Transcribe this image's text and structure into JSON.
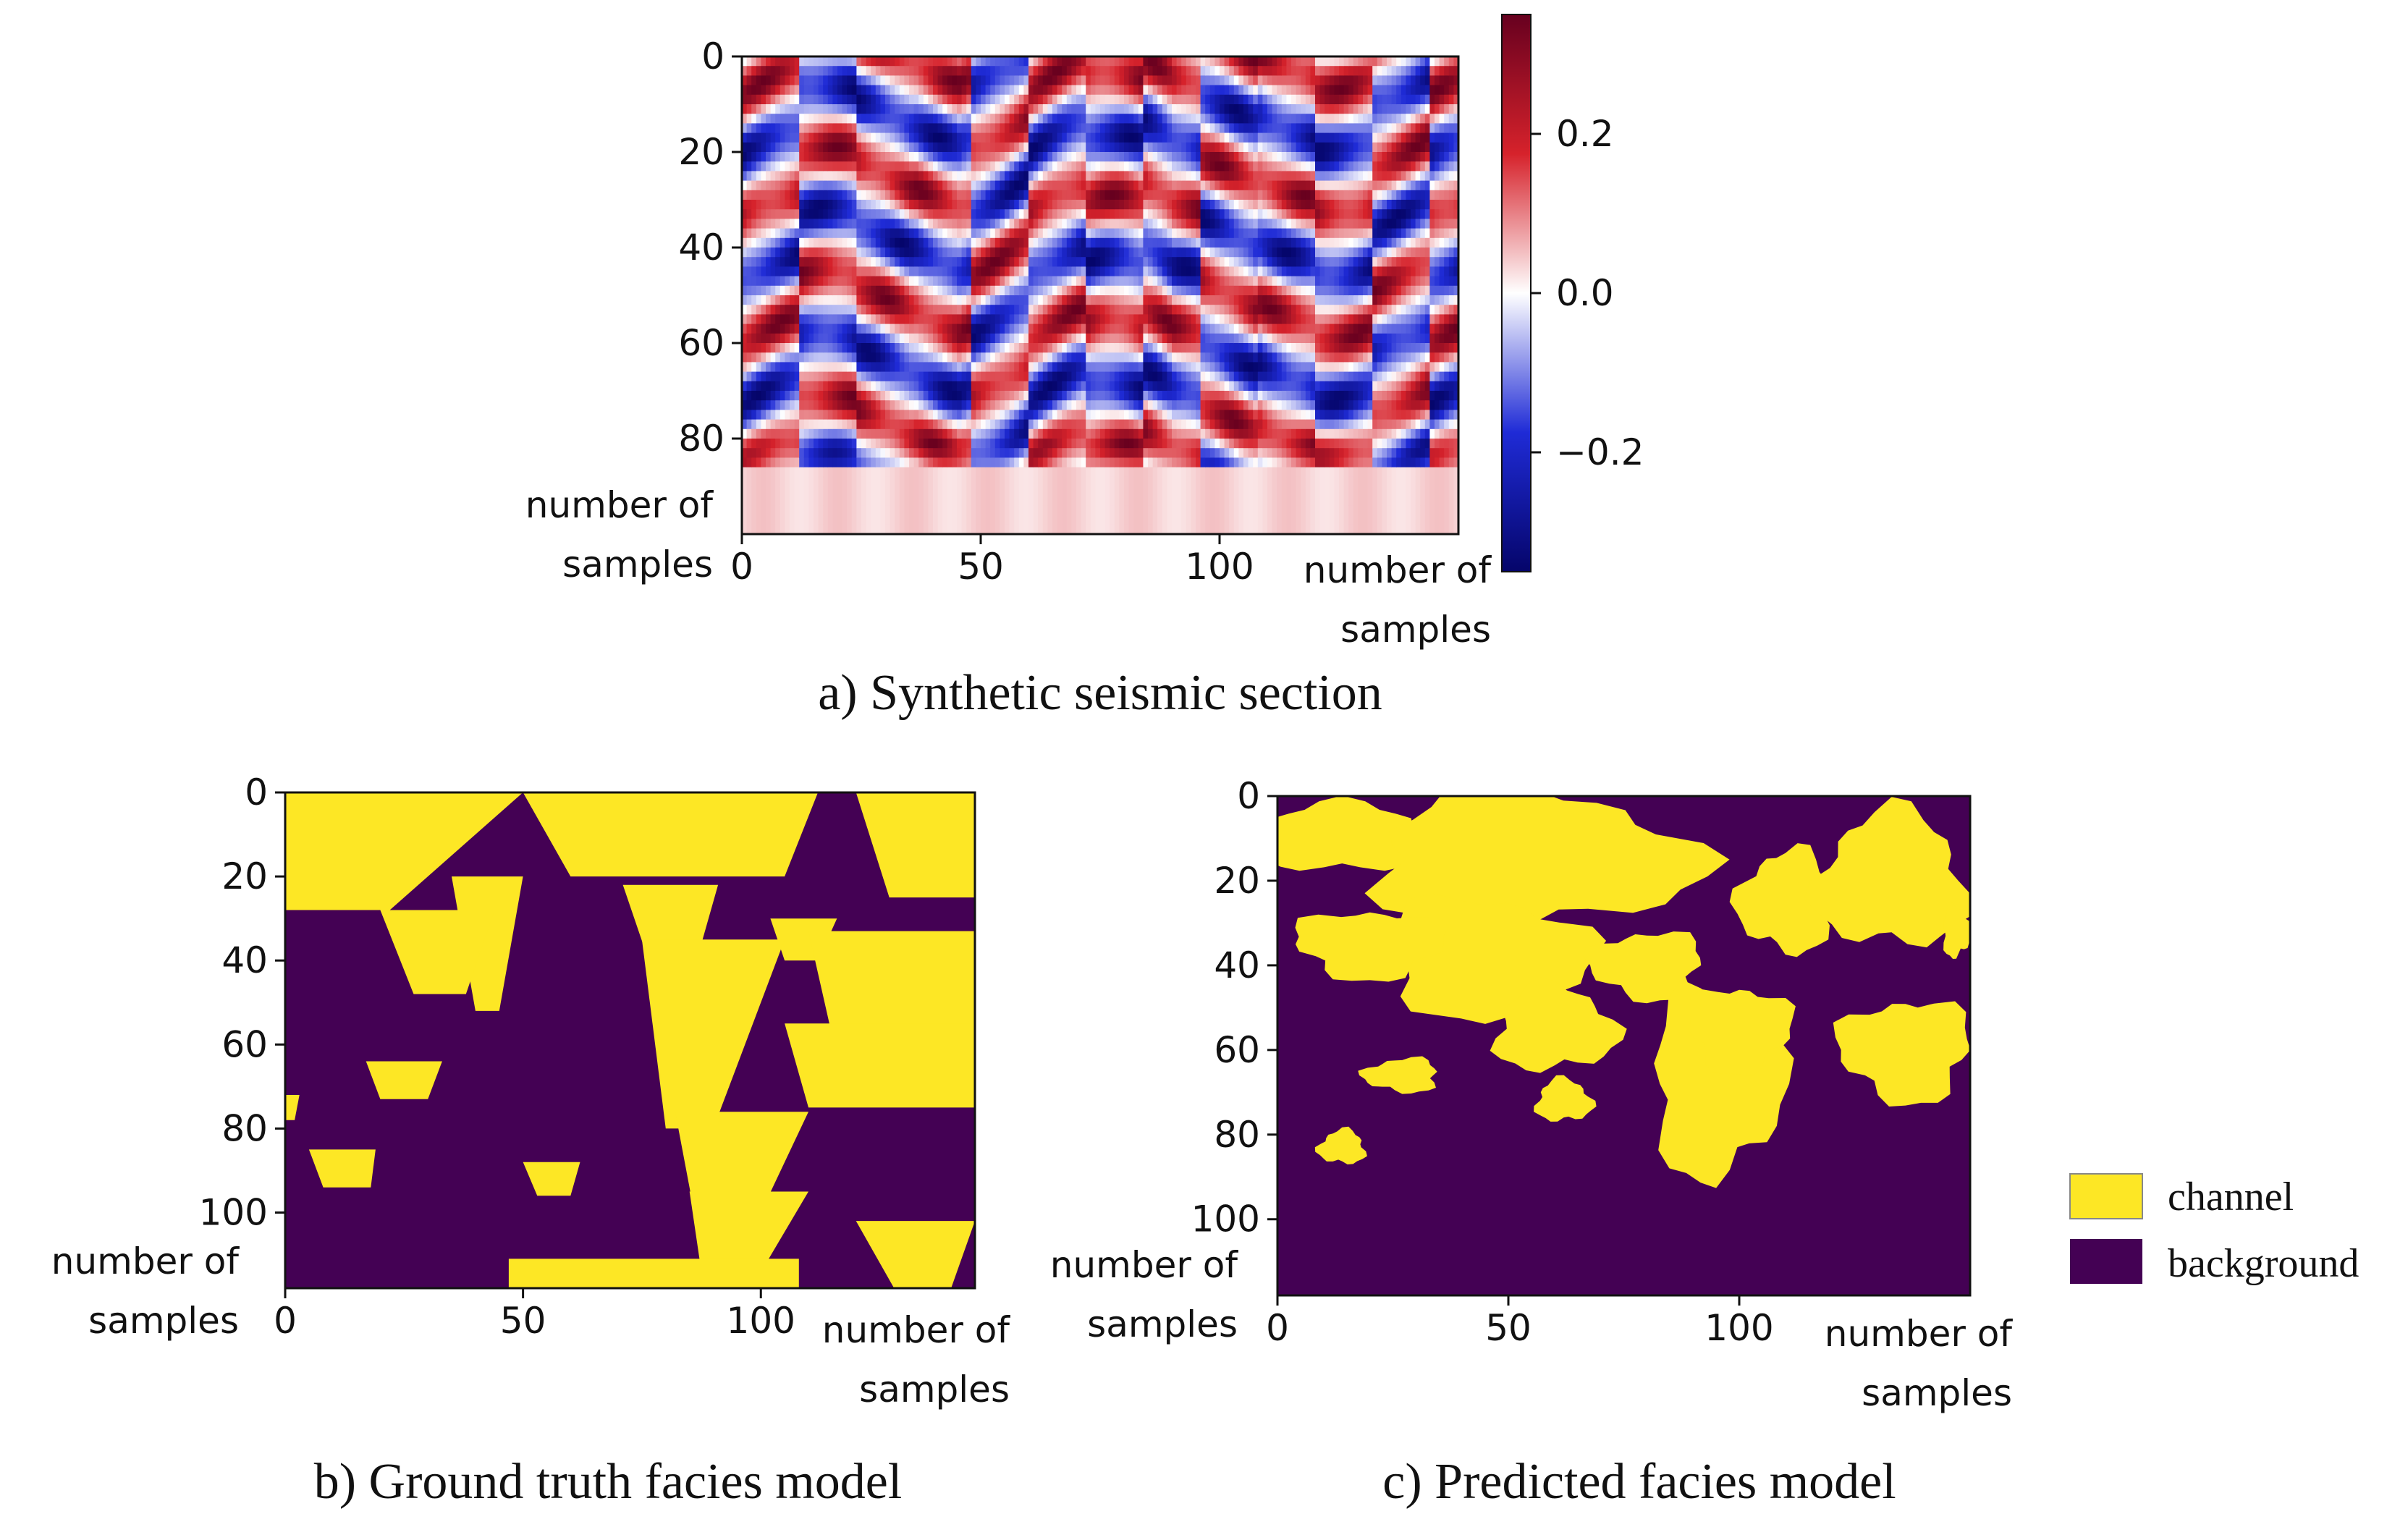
{
  "colors": {
    "channel": "#fde725",
    "background": "#440154",
    "seismic_high": "#67001f",
    "seismic_red": "#d6222b",
    "seismic_white": "#ffffff",
    "seismic_blue": "#1f2bd6",
    "seismic_low": "#05056a"
  },
  "chart_data": [
    {
      "id": "a",
      "type": "heatmap",
      "caption": "a) Synthetic seismic section",
      "xlabel": "number of samples",
      "ylabel": "number of samples",
      "xlim": [
        0,
        150
      ],
      "ylim": [
        0,
        100
      ],
      "xticks": [
        0,
        50,
        100
      ],
      "yticks": [
        0,
        20,
        40,
        60,
        80
      ],
      "colorbar": {
        "range": [
          -0.35,
          0.35
        ],
        "ticks": [
          0.2,
          0.0,
          -0.2
        ],
        "ticklabels": [
          "0.2",
          "0.0",
          "−0.2"
        ],
        "cmap": "seismic"
      },
      "note_values": "continuous amplitude field; dipping red/blue reflectors, weaker below ~80 samples"
    },
    {
      "id": "b",
      "type": "heatmap",
      "caption": "b) Ground truth facies model",
      "xlabel": "number of samples",
      "ylabel": "number of samples",
      "xlim": [
        0,
        145
      ],
      "ylim": [
        0,
        118
      ],
      "xticks": [
        0,
        50,
        100
      ],
      "yticks": [
        0,
        20,
        40,
        60,
        80,
        100
      ],
      "classes": [
        "channel",
        "background"
      ],
      "channel_bodies": [
        {
          "top": 0,
          "bottom": 28,
          "left_top": 0,
          "right_top": 50,
          "left_bottom": 0,
          "right_bottom": 22
        },
        {
          "top": 0,
          "bottom": 20,
          "left_top": 50,
          "right_top": 112,
          "left_bottom": 60,
          "right_bottom": 105
        },
        {
          "top": 0,
          "bottom": 25,
          "left_top": 120,
          "right_top": 145,
          "left_bottom": 127,
          "right_bottom": 145
        },
        {
          "top": 20,
          "bottom": 52,
          "left_top": 35,
          "right_top": 50,
          "left_bottom": 40,
          "right_bottom": 45
        },
        {
          "top": 28,
          "bottom": 48,
          "left_top": 20,
          "right_top": 44,
          "left_bottom": 27,
          "right_bottom": 38
        },
        {
          "top": 22,
          "bottom": 42,
          "left_top": 71,
          "right_top": 91,
          "left_bottom": 77,
          "right_bottom": 86
        },
        {
          "top": 30,
          "bottom": 40,
          "left_top": 102,
          "right_top": 116,
          "left_bottom": 105,
          "right_bottom": 112
        },
        {
          "top": 35,
          "bottom": 80,
          "left_top": 75,
          "right_top": 105,
          "left_bottom": 80,
          "right_bottom": 90
        },
        {
          "top": 33,
          "bottom": 58,
          "left_top": 110,
          "right_top": 145,
          "left_bottom": 115,
          "right_bottom": 145
        },
        {
          "top": 55,
          "bottom": 75,
          "left_top": 105,
          "right_top": 145,
          "left_bottom": 110,
          "right_bottom": 145
        },
        {
          "top": 64,
          "bottom": 73,
          "left_top": 17,
          "right_top": 33,
          "left_bottom": 20,
          "right_bottom": 30
        },
        {
          "top": 85,
          "bottom": 94,
          "left_top": 5,
          "right_top": 19,
          "left_bottom": 8,
          "right_bottom": 18
        },
        {
          "top": 88,
          "bottom": 96,
          "left_top": 50,
          "right_top": 62,
          "left_bottom": 53,
          "right_bottom": 60
        },
        {
          "top": 76,
          "bottom": 100,
          "left_top": 82,
          "right_top": 110,
          "left_bottom": 86,
          "right_bottom": 100
        },
        {
          "top": 95,
          "bottom": 118,
          "left_top": 85,
          "right_top": 110,
          "left_bottom": 88,
          "right_bottom": 98
        },
        {
          "top": 111,
          "bottom": 118,
          "left_top": 47,
          "right_top": 108,
          "left_bottom": 47,
          "right_bottom": 108
        },
        {
          "top": 102,
          "bottom": 118,
          "left_top": 120,
          "right_top": 145,
          "left_bottom": 128,
          "right_bottom": 140
        },
        {
          "top": 72,
          "bottom": 78,
          "left_top": 0,
          "right_top": 3,
          "left_bottom": 0,
          "right_bottom": 2
        }
      ]
    },
    {
      "id": "c",
      "type": "heatmap",
      "caption": "c) Predicted facies model",
      "xlabel": "number of samples",
      "ylabel": "number of samples",
      "xlim": [
        0,
        150
      ],
      "ylim": [
        0,
        118
      ],
      "xticks": [
        0,
        50,
        100
      ],
      "yticks": [
        0,
        20,
        40,
        60,
        80,
        100
      ],
      "classes": [
        "channel",
        "background"
      ],
      "channel_bodies": [
        {
          "cx": 14,
          "cy": 10,
          "rx": 20,
          "ry": 8
        },
        {
          "cx": 55,
          "cy": 15,
          "rx": 35,
          "ry": 16
        },
        {
          "cx": 45,
          "cy": 38,
          "rx": 22,
          "ry": 14
        },
        {
          "cx": 20,
          "cy": 35,
          "rx": 16,
          "ry": 8
        },
        {
          "cx": 80,
          "cy": 40,
          "rx": 12,
          "ry": 8
        },
        {
          "cx": 110,
          "cy": 25,
          "rx": 10,
          "ry": 12
        },
        {
          "cx": 133,
          "cy": 20,
          "rx": 16,
          "ry": 16
        },
        {
          "cx": 60,
          "cy": 55,
          "rx": 13,
          "ry": 10
        },
        {
          "cx": 95,
          "cy": 68,
          "rx": 14,
          "ry": 22
        },
        {
          "cx": 100,
          "cy": 55,
          "rx": 11,
          "ry": 10
        },
        {
          "cx": 136,
          "cy": 60,
          "rx": 14,
          "ry": 12
        },
        {
          "cx": 27,
          "cy": 66,
          "rx": 8,
          "ry": 4
        },
        {
          "cx": 14,
          "cy": 83,
          "rx": 5,
          "ry": 4
        },
        {
          "cx": 62,
          "cy": 72,
          "rx": 6,
          "ry": 5
        },
        {
          "cx": 147,
          "cy": 32,
          "rx": 3,
          "ry": 6
        }
      ]
    }
  ],
  "legend": {
    "position": "bottom-right",
    "items": [
      {
        "label": "channel",
        "color": "#fde725"
      },
      {
        "label": "background",
        "color": "#440154"
      }
    ]
  }
}
